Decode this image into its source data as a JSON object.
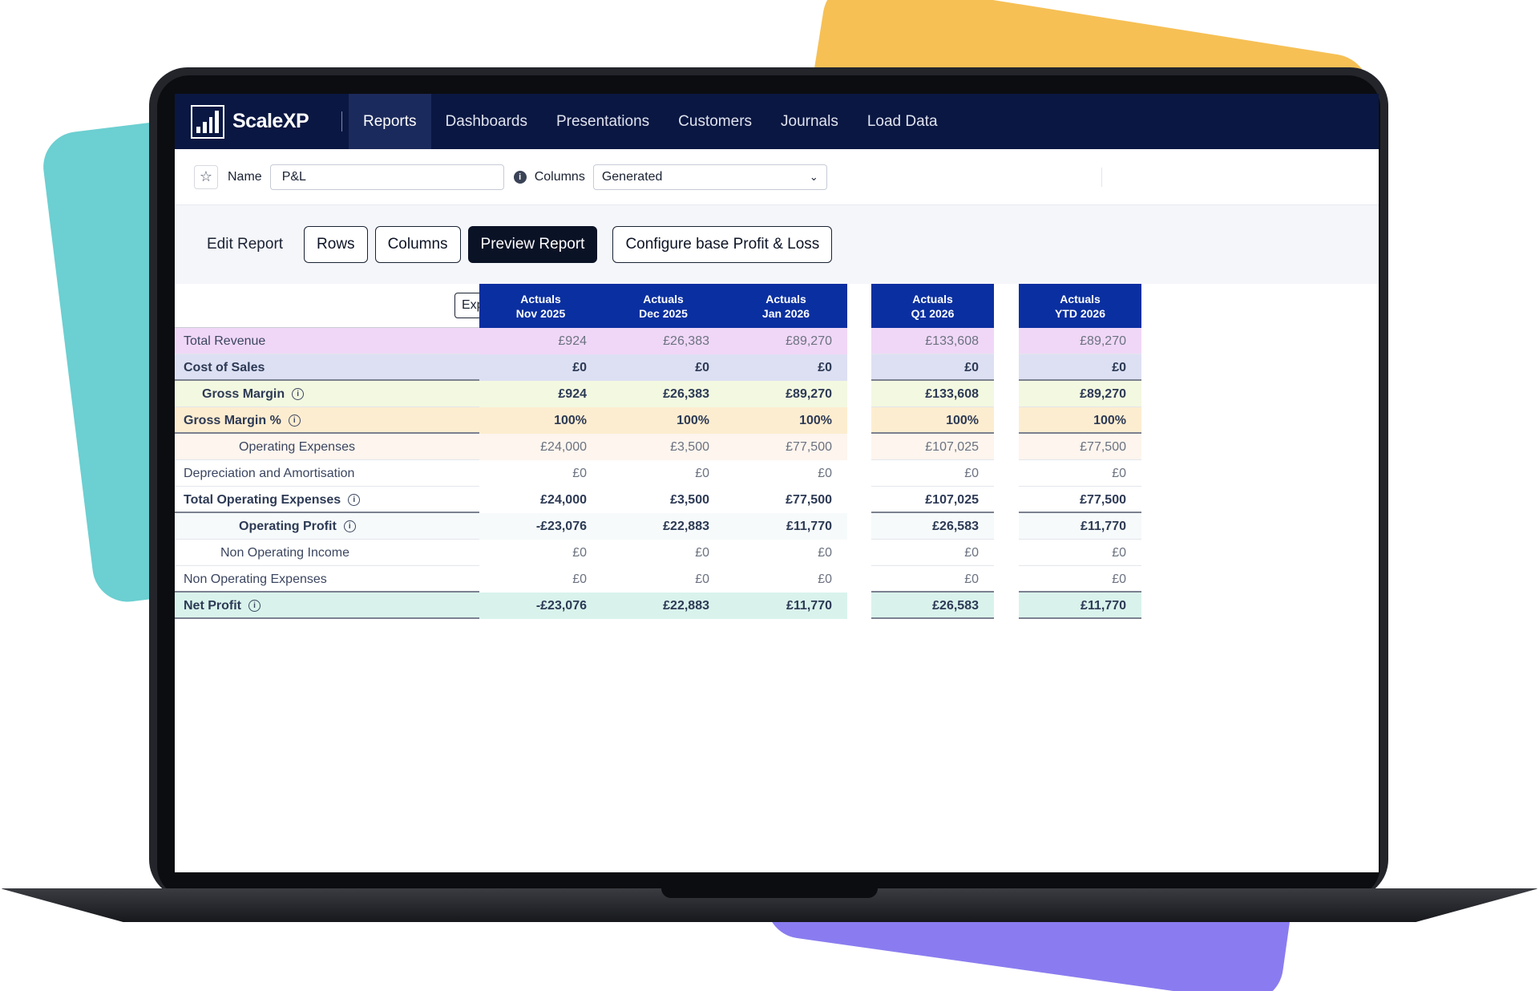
{
  "brand": {
    "name": "ScaleXP"
  },
  "nav": {
    "items": [
      {
        "label": "Reports",
        "active": true
      },
      {
        "label": "Dashboards",
        "active": false
      },
      {
        "label": "Presentations",
        "active": false
      },
      {
        "label": "Customers",
        "active": false
      },
      {
        "label": "Journals",
        "active": false
      },
      {
        "label": "Load Data",
        "active": false
      }
    ]
  },
  "report": {
    "name_label": "Name",
    "name_value": "P&L",
    "columns_label": "Columns",
    "columns_value": "Generated"
  },
  "toolbar": {
    "edit_label": "Edit Report",
    "rows_label": "Rows",
    "columns_label": "Columns",
    "preview_label": "Preview Report",
    "configure_label": "Configure base Profit & Loss"
  },
  "table": {
    "expand_label": "Expand all",
    "columns": [
      {
        "line1": "Actuals",
        "line2": "Nov 2025"
      },
      {
        "line1": "Actuals",
        "line2": "Dec 2025"
      },
      {
        "line1": "Actuals",
        "line2": "Jan 2026"
      },
      {
        "line1": "Actuals",
        "line2": "Q1 2026"
      },
      {
        "line1": "Actuals",
        "line2": "YTD 2026"
      }
    ],
    "rows": [
      {
        "label": "Total Revenue",
        "values": [
          "£924",
          "£26,383",
          "£89,270",
          "£133,608",
          "£89,270"
        ],
        "bg": "#f0d7f7",
        "expandable": true
      },
      {
        "label": "Cost of Sales",
        "values": [
          "£0",
          "£0",
          "£0",
          "£0",
          "£0"
        ],
        "bg": "#dde0f3",
        "expandable": true
      },
      {
        "label": "Gross Margin",
        "values": [
          "£924",
          "£26,383",
          "£89,270",
          "£133,608",
          "£89,270"
        ],
        "bg": "#f3f8e1",
        "info": true
      },
      {
        "label": "Gross Margin %",
        "values": [
          "100%",
          "100%",
          "100%",
          "100%",
          "100%"
        ],
        "bg": "#fdedd0",
        "info": true
      },
      {
        "label": "Operating Expenses",
        "values": [
          "£24,000",
          "£3,500",
          "£77,500",
          "£107,025",
          "£77,500"
        ],
        "bg": "#fdf5ee",
        "expandable": true
      },
      {
        "label": "Depreciation and Amortisation",
        "values": [
          "£0",
          "£0",
          "£0",
          "£0",
          "£0"
        ],
        "bg": "#ffffff",
        "expandable": true
      },
      {
        "label": "Total Operating Expenses",
        "values": [
          "£24,000",
          "£3,500",
          "£77,500",
          "£107,025",
          "£77,500"
        ],
        "bg": "#ffffff",
        "info": true
      },
      {
        "label": "Operating Profit",
        "values": [
          "-£23,076",
          "£22,883",
          "£11,770",
          "£26,583",
          "£11,770"
        ],
        "bg": "#f6fafa",
        "info": true
      },
      {
        "label": "Non Operating Income",
        "values": [
          "£0",
          "£0",
          "£0",
          "£0",
          "£0"
        ],
        "bg": "#ffffff",
        "expandable": true
      },
      {
        "label": "Non Operating Expenses",
        "values": [
          "£0",
          "£0",
          "£0",
          "£0",
          "£0"
        ],
        "bg": "#ffffff",
        "expandable": true
      },
      {
        "label": "Net Profit",
        "values": [
          "-£23,076",
          "£22,883",
          "£11,770",
          "£26,583",
          "£11,770"
        ],
        "bg": "#d9f3ec",
        "info": true
      }
    ]
  },
  "colors": {
    "nav_bg": "#0a1742",
    "header_blue": "#0a2fa0",
    "accent_dark": "#0a1226"
  }
}
